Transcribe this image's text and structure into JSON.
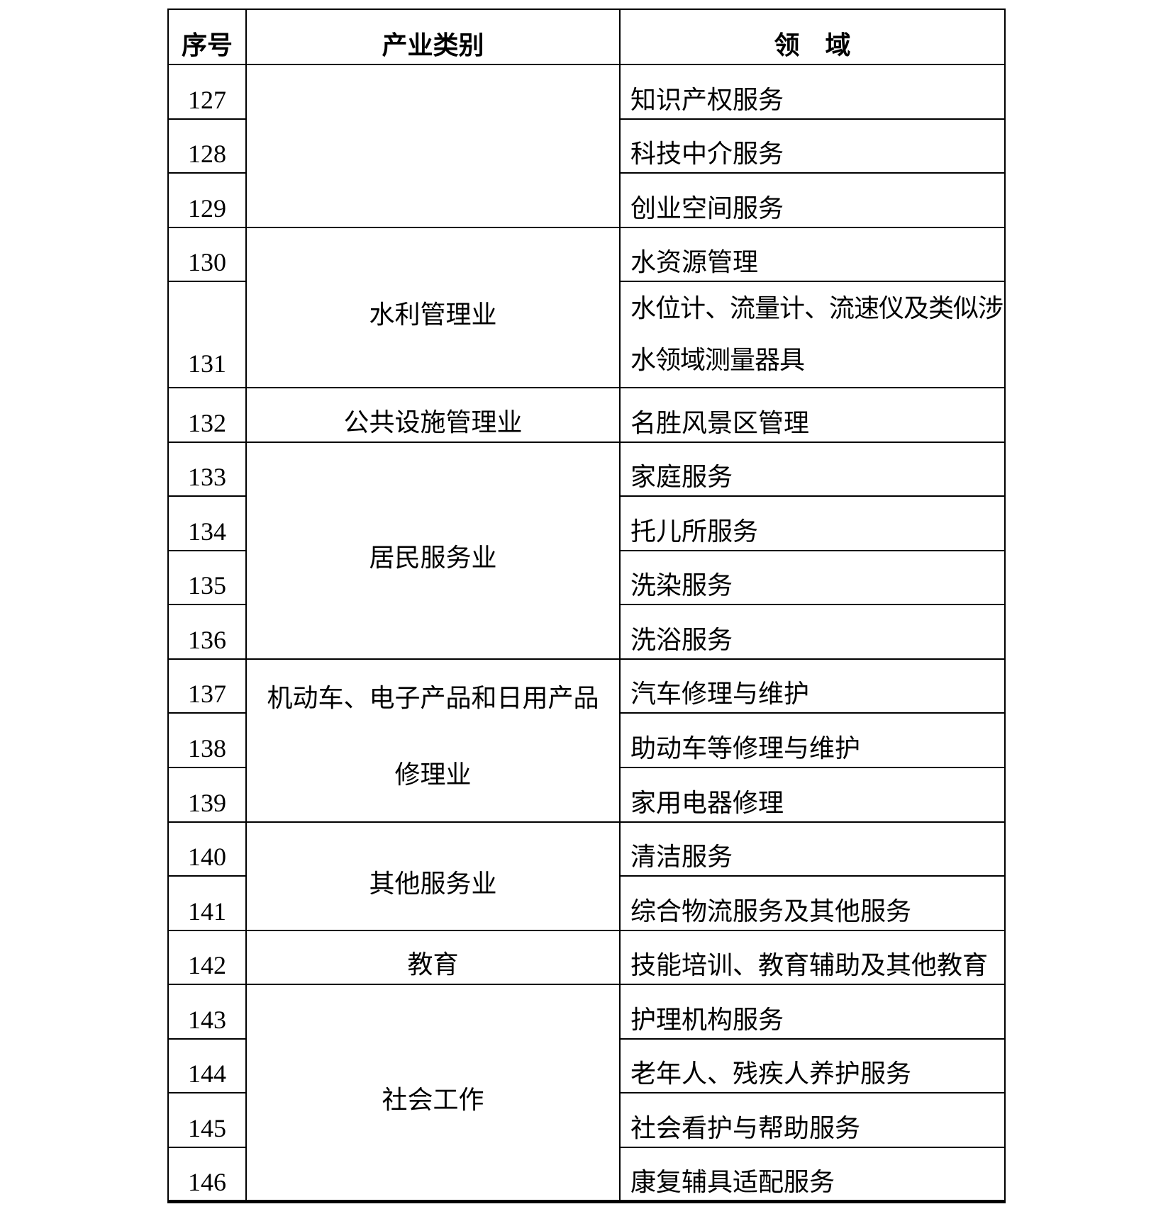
{
  "page": {
    "background_color": "#ffffff",
    "text_color": "#000000",
    "border_color": "#000000"
  },
  "table": {
    "headers": {
      "num": "序号",
      "category": "产业类别",
      "field": "领　域"
    },
    "categories": {
      "blank_127_129": "",
      "water_management": "水利管理业",
      "public_facilities": "公共设施管理业",
      "resident_services": "居民服务业",
      "vehicle_repair_line1": "机动车、电子产品和日用产品",
      "vehicle_repair_line2": "修理业",
      "other_services": "其他服务业",
      "education": "教育",
      "social_work": "社会工作"
    },
    "rows": [
      {
        "num": "127",
        "field": "知识产权服务"
      },
      {
        "num": "128",
        "field": "科技中介服务"
      },
      {
        "num": "129",
        "field": "创业空间服务"
      },
      {
        "num": "130",
        "field": "水资源管理"
      },
      {
        "num": "131",
        "field_line1": "水位计、流量计、流速仪及类似涉",
        "field_line2": "水领域测量器具"
      },
      {
        "num": "132",
        "field": "名胜风景区管理"
      },
      {
        "num": "133",
        "field": "家庭服务"
      },
      {
        "num": "134",
        "field": "托儿所服务"
      },
      {
        "num": "135",
        "field": "洗染服务"
      },
      {
        "num": "136",
        "field": "洗浴服务"
      },
      {
        "num": "137",
        "field": "汽车修理与维护"
      },
      {
        "num": "138",
        "field": "助动车等修理与维护"
      },
      {
        "num": "139",
        "field": "家用电器修理"
      },
      {
        "num": "140",
        "field": "清洁服务"
      },
      {
        "num": "141",
        "field": "综合物流服务及其他服务"
      },
      {
        "num": "142",
        "field": "技能培训、教育辅助及其他教育"
      },
      {
        "num": "143",
        "field": "护理机构服务"
      },
      {
        "num": "144",
        "field": "老年人、残疾人养护服务"
      },
      {
        "num": "145",
        "field": "社会看护与帮助服务"
      },
      {
        "num": "146",
        "field": "康复辅具适配服务"
      }
    ]
  }
}
